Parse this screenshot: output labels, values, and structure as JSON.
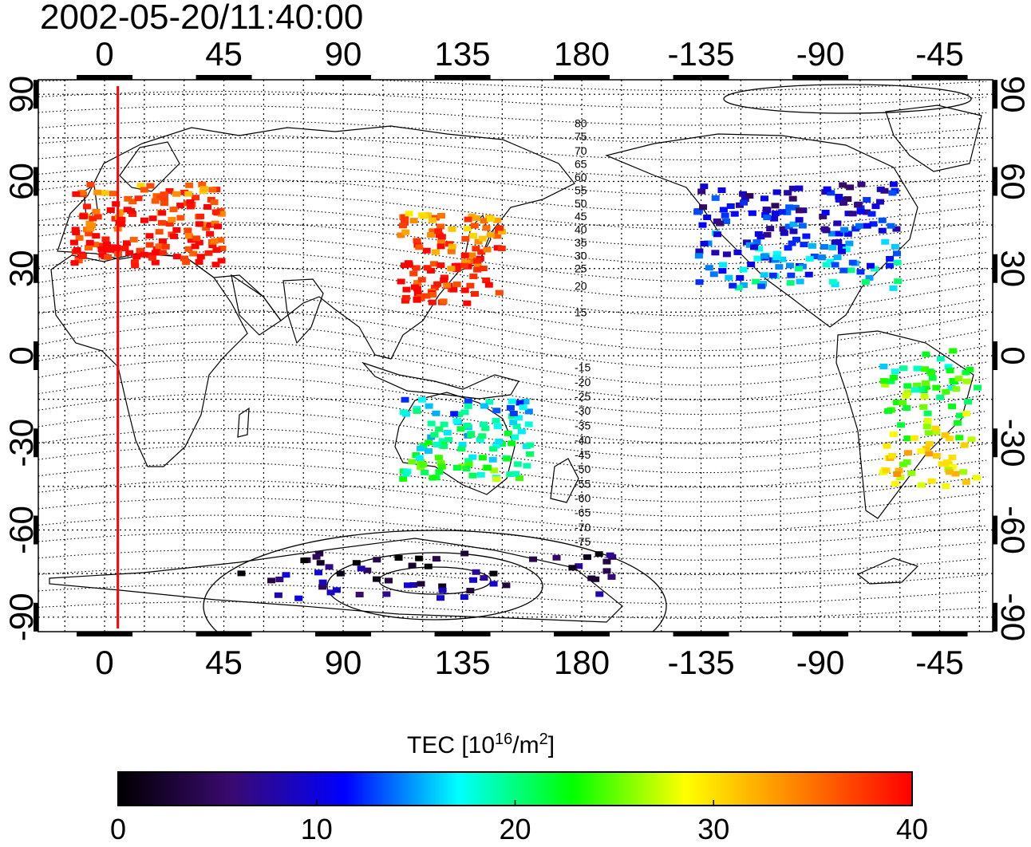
{
  "title": "2002-05-20/11:40:00",
  "map": {
    "lon_range": [
      -25,
      335
    ],
    "lat_range": [
      -95,
      95
    ],
    "top_lon_labels": [
      "0",
      "45",
      "90",
      "135",
      "180",
      "-135",
      "-90",
      "-45"
    ],
    "bottom_lon_labels": [
      "0",
      "45",
      "90",
      "135",
      "180",
      "-135",
      "-90",
      "-45"
    ],
    "lon_tick_values": [
      0,
      45,
      90,
      135,
      180,
      225,
      270,
      315
    ],
    "lat_labels": [
      "90",
      "60",
      "30",
      "0",
      "-30",
      "-60",
      "-90"
    ],
    "lat_tick_values": [
      90,
      60,
      30,
      0,
      -30,
      -60,
      -90
    ],
    "contour_labels_north": [
      "80",
      "75",
      "70",
      "65",
      "60",
      "55",
      "50",
      "45",
      "40",
      "35",
      "30",
      "25",
      "20",
      "15"
    ],
    "contour_labels_south": [
      "-15",
      "-20",
      "-25",
      "-30",
      "-35",
      "-40",
      "-45",
      "-50",
      "-55",
      "-60",
      "-65",
      "-70",
      "-75"
    ],
    "contour_label_lats_north": [
      80,
      75.5,
      70.5,
      66,
      61.5,
      57,
      52.5,
      48,
      43.5,
      39,
      34.5,
      30,
      24,
      15
    ],
    "contour_label_lats_south": [
      -4,
      -9,
      -14,
      -19,
      -24,
      -29,
      -34,
      -39,
      -44,
      -49,
      -54,
      -59,
      -64
    ],
    "marker_line_lon": 5,
    "marker_line_color": "#ff0000",
    "tec_clusters": [
      {
        "region": "europe",
        "lon": 15,
        "lat": 46,
        "tec": 38
      },
      {
        "region": "east-asia",
        "lon": 130,
        "lat": 35,
        "tec": 37
      },
      {
        "region": "north-america",
        "lon": -100,
        "lat": 42,
        "tec": 12
      },
      {
        "region": "australia",
        "lon": 135,
        "lat": -28,
        "tec": 19
      },
      {
        "region": "south-america",
        "lon": -50,
        "lat": -20,
        "tec": 25
      },
      {
        "region": "antarctica",
        "lon": 120,
        "lat": -75,
        "tec": 5
      }
    ]
  },
  "colorbar": {
    "label_main": "TEC  [10",
    "label_sup1": "16",
    "label_mid": "/m",
    "label_sup2": "2",
    "label_end": "]",
    "tick_labels": [
      "0",
      "10",
      "20",
      "30",
      "40"
    ],
    "tick_values": [
      0,
      10,
      20,
      30,
      40
    ],
    "range": [
      0,
      40
    ],
    "stops": [
      "#000000",
      "#3a0a70",
      "#0000ff",
      "#00ffff",
      "#00ff00",
      "#ffff00",
      "#ff8000",
      "#ff0000"
    ]
  }
}
